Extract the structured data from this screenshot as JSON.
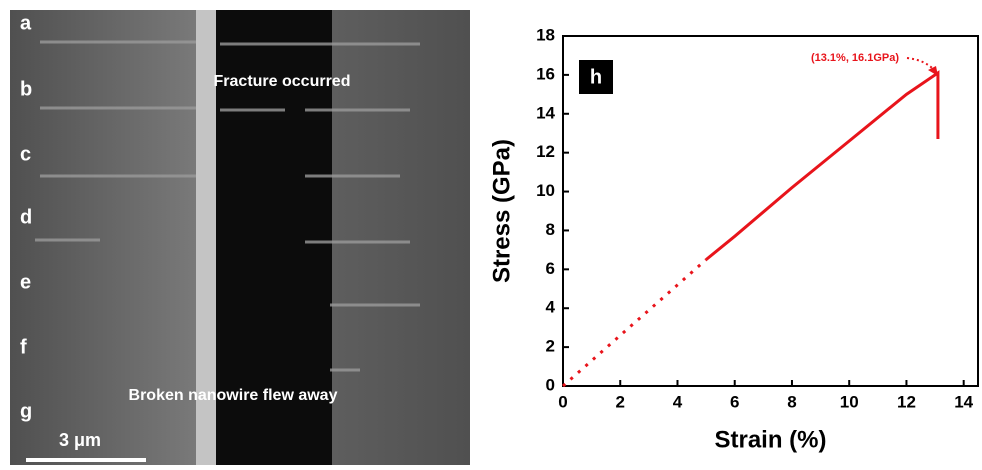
{
  "image": {
    "panel_labels": [
      "a",
      "b",
      "c",
      "d",
      "e",
      "f",
      "g"
    ],
    "top_caption": "Fracture occurred",
    "bottom_caption": "Broken nanowire flew away",
    "scale_bar": "3 μm"
  },
  "chart_data": {
    "type": "line",
    "panel_label": "h",
    "x_label": "Strain (%)",
    "y_label": "Stress (GPa)",
    "annotation": "(13.1%, 16.1GPa)",
    "series": [
      {
        "color": "#e8141b",
        "dashed": true,
        "x": [
          0,
          5
        ],
        "values": [
          0,
          6.5
        ]
      },
      {
        "color": "#e8141b",
        "dashed": false,
        "x": [
          5,
          6,
          8,
          10,
          12,
          13.1,
          13.1
        ],
        "values": [
          6.5,
          7.7,
          10.2,
          12.6,
          15.0,
          16.1,
          12.7
        ]
      }
    ],
    "xlim": [
      0,
      14.5
    ],
    "xticks": [
      0,
      2,
      4,
      6,
      8,
      10,
      12,
      14
    ],
    "ylim": [
      0,
      18
    ],
    "yticks": [
      0,
      2,
      4,
      6,
      8,
      10,
      12,
      14,
      16,
      18
    ]
  }
}
